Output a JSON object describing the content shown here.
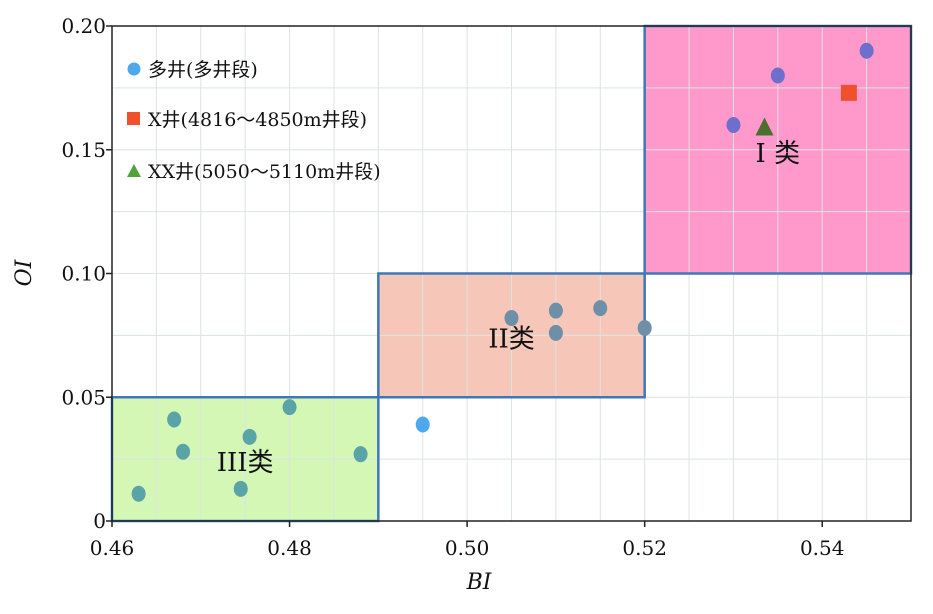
{
  "chart_data": {
    "type": "scatter",
    "xlabel": "BI",
    "ylabel": "OI",
    "xlim": [
      0.46,
      0.55
    ],
    "ylim": [
      0,
      0.2
    ],
    "x_ticks": [
      {
        "value": 0.46,
        "label": "0.46"
      },
      {
        "value": 0.48,
        "label": "0.48"
      },
      {
        "value": 0.5,
        "label": "0.50"
      },
      {
        "value": 0.52,
        "label": "0.52"
      },
      {
        "value": 0.54,
        "label": "0.54"
      }
    ],
    "y_ticks": [
      {
        "value": 0,
        "label": "0"
      },
      {
        "value": 0.05,
        "label": "0.05"
      },
      {
        "value": 0.1,
        "label": "0.10"
      },
      {
        "value": 0.15,
        "label": "0.15"
      },
      {
        "value": 0.2,
        "label": "0.20"
      }
    ],
    "grid": true,
    "legend_position": "top-left",
    "regions": [
      {
        "label": "III类",
        "x": [
          0.46,
          0.49
        ],
        "y": [
          0,
          0.05
        ],
        "color": "#d4f7b6"
      },
      {
        "label": "II类",
        "x": [
          0.49,
          0.52
        ],
        "y": [
          0.05,
          0.1
        ],
        "color": "#f6c6b9"
      },
      {
        "label": "I 类",
        "x": [
          0.52,
          0.55
        ],
        "y": [
          0.1,
          0.2
        ],
        "color": "#ff99cc"
      }
    ],
    "series": [
      {
        "name": "多井(多井段)",
        "marker": "circle",
        "color": "#4fa8ee",
        "points": [
          {
            "x": 0.463,
            "y": 0.011
          },
          {
            "x": 0.467,
            "y": 0.041
          },
          {
            "x": 0.468,
            "y": 0.028
          },
          {
            "x": 0.4745,
            "y": 0.013
          },
          {
            "x": 0.4755,
            "y": 0.034
          },
          {
            "x": 0.48,
            "y": 0.046
          },
          {
            "x": 0.488,
            "y": 0.027
          },
          {
            "x": 0.495,
            "y": 0.039
          },
          {
            "x": 0.505,
            "y": 0.082
          },
          {
            "x": 0.51,
            "y": 0.085
          },
          {
            "x": 0.51,
            "y": 0.076
          },
          {
            "x": 0.515,
            "y": 0.086
          },
          {
            "x": 0.52,
            "y": 0.078
          },
          {
            "x": 0.53,
            "y": 0.16
          },
          {
            "x": 0.535,
            "y": 0.18
          },
          {
            "x": 0.545,
            "y": 0.19
          }
        ]
      },
      {
        "name": "X井(4816～4850m井段)",
        "marker": "square",
        "color": "#f0502c",
        "points": [
          {
            "x": 0.543,
            "y": 0.173
          }
        ]
      },
      {
        "name": "XX井(5050～5110m井段)",
        "marker": "triangle",
        "color": "#4fa23c",
        "points": [
          {
            "x": 0.5335,
            "y": 0.159
          }
        ]
      }
    ]
  }
}
